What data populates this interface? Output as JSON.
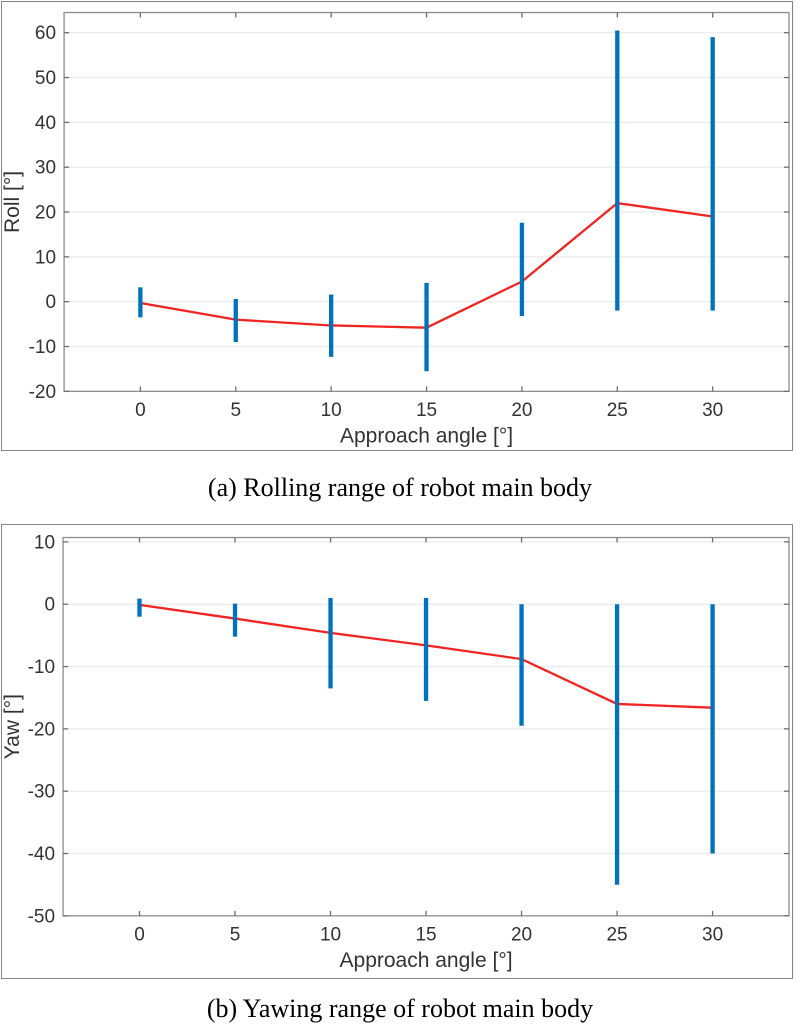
{
  "colors": {
    "line": "#F02521",
    "error_bar": "#0072BD",
    "grid": "#E9E9E9",
    "axis_box": "#8C8C8C",
    "tick": "#6E6E6E",
    "tick_label": "#333333",
    "caption_text": "#000000",
    "panel_frame": "#858585",
    "background": "#FFFFFF"
  },
  "chart_data": [
    {
      "type": "line",
      "caption": "(a) Rolling range of robot main body",
      "xlabel": "Approach angle [°]",
      "ylabel": "Roll [°]",
      "x": [
        0,
        5,
        10,
        15,
        20,
        25,
        30
      ],
      "series": [
        {
          "name": "mean roll",
          "values": [
            -0.3,
            -4.0,
            -5.3,
            -5.8,
            4.5,
            22.0,
            19.0
          ]
        },
        {
          "name": "upper range",
          "values": [
            3.2,
            0.6,
            1.6,
            4.2,
            17.6,
            60.5,
            59.0
          ]
        },
        {
          "name": "lower range",
          "values": [
            -3.5,
            -9.0,
            -12.3,
            -15.5,
            -3.2,
            -2.0,
            -2.0
          ]
        }
      ],
      "xticks": [
        0,
        5,
        10,
        15,
        20,
        25,
        30
      ],
      "yticks": [
        -20,
        -10,
        0,
        10,
        20,
        30,
        40,
        50,
        60
      ],
      "xlim": [
        -4,
        34
      ],
      "ylim": [
        -20,
        64.5
      ],
      "grid": "horizontal only",
      "legend": "none"
    },
    {
      "type": "line",
      "caption": "(b) Yawing range of robot main body",
      "xlabel": "Approach angle [°]",
      "ylabel": "Yaw [°]",
      "x": [
        0,
        5,
        10,
        15,
        20,
        25,
        30
      ],
      "series": [
        {
          "name": "mean yaw",
          "values": [
            -0.1,
            -2.3,
            -4.6,
            -6.6,
            -8.8,
            -16.0,
            -16.6
          ]
        },
        {
          "name": "upper range",
          "values": [
            0.9,
            0.1,
            1.0,
            1.0,
            0.0,
            0.0,
            0.0
          ]
        },
        {
          "name": "lower range",
          "values": [
            -2.0,
            -5.2,
            -13.5,
            -15.5,
            -19.5,
            -45.0,
            -40.0
          ]
        }
      ],
      "xticks": [
        0,
        5,
        10,
        15,
        20,
        25,
        30
      ],
      "yticks": [
        -50,
        -40,
        -30,
        -20,
        -10,
        0,
        10
      ],
      "xlim": [
        -4,
        34
      ],
      "ylim": [
        -50,
        10.7
      ],
      "grid": "horizontal only",
      "legend": "none"
    }
  ]
}
